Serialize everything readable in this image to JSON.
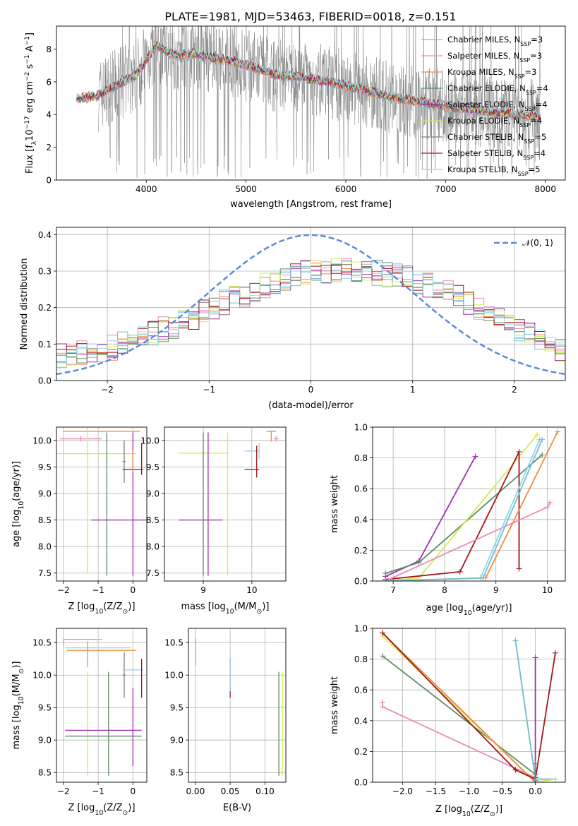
{
  "figure": {
    "title": "PLATE=1981, MJD=53463, FIBERID=0018, z=0.151",
    "colors": {
      "Chabrier MILES": "#77bdcf",
      "Salpeter MILES": "#e98cbb",
      "Kroupa MILES": "#ef8b3f",
      "Chabrier ELODIE": "#5c8c64",
      "Salpeter ELODIE": "#a12fb0",
      "Kroupa ELODIE": "#d4ea58",
      "Chabrier STELIB": "#7f7f7f",
      "Salpeter STELIB": "#a31517",
      "Kroupa STELIB": "#8dd7ea",
      "normal": "#5b8bd9"
    }
  },
  "chart_data": [
    {
      "id": "spectrum",
      "type": "line",
      "xlabel": "wavelength [Angstrom, rest frame]",
      "ylabel_main": "Flux [f",
      "ylabel_sub": "λ",
      "ylabel_rest": "10",
      "ylabel_units": " erg cm",
      "ylabel_units2": " s",
      "ylabel_units3": " A",
      "ylabel_exps": [
        "−17",
        "−2",
        "−1",
        "−1"
      ],
      "xlim": [
        3100,
        8200
      ],
      "ylim": [
        0,
        9.4
      ],
      "xticks": [
        4000,
        5000,
        6000,
        7000,
        8000
      ],
      "yticks": [
        0,
        2,
        4,
        6,
        8
      ],
      "grid": false,
      "legend_position": "top-right",
      "series": [
        {
          "name": "Chabrier MILES, N",
          "ssp": "=3",
          "color_key": "Chabrier MILES"
        },
        {
          "name": "Salpeter MILES, N",
          "ssp": "=3",
          "color_key": "Salpeter MILES"
        },
        {
          "name": "Kroupa MILES, N",
          "ssp": "=3",
          "color_key": "Kroupa MILES"
        },
        {
          "name": "Chabrier ELODIE, N",
          "ssp": "=4",
          "color_key": "Chabrier ELODIE"
        },
        {
          "name": "Salpeter ELODIE, N",
          "ssp": "=4",
          "color_key": "Salpeter ELODIE"
        },
        {
          "name": "Kroupa ELODIE, N",
          "ssp": "=4",
          "color_key": "Kroupa ELODIE"
        },
        {
          "name": "Chabrier STELIB, N",
          "ssp": "=5",
          "color_key": "Chabrier STELIB"
        },
        {
          "name": "Salpeter STELIB, N",
          "ssp": "=4",
          "color_key": "Salpeter STELIB"
        },
        {
          "name": "Kroupa STELIB, N",
          "ssp": "=5",
          "color_key": "Kroupa STELIB"
        }
      ],
      "ssp_sub": "SSP",
      "model_continuum": [
        [
          3300,
          5.0
        ],
        [
          3500,
          5.1
        ],
        [
          3700,
          5.8
        ],
        [
          3900,
          6.4
        ],
        [
          4100,
          8.2
        ],
        [
          4300,
          7.6
        ],
        [
          4500,
          7.7
        ],
        [
          4700,
          7.4
        ],
        [
          4900,
          7.2
        ],
        [
          5100,
          6.8
        ],
        [
          5300,
          6.4
        ],
        [
          5500,
          6.3
        ],
        [
          5700,
          6.1
        ],
        [
          5900,
          5.9
        ],
        [
          6100,
          5.6
        ],
        [
          6300,
          5.3
        ],
        [
          6500,
          5.0
        ],
        [
          6700,
          4.8
        ],
        [
          6900,
          4.6
        ],
        [
          7100,
          4.4
        ],
        [
          7300,
          4.3
        ],
        [
          7500,
          4.1
        ],
        [
          7700,
          4.0
        ],
        [
          7900,
          3.9
        ]
      ]
    },
    {
      "id": "residuals",
      "type": "histogram",
      "xlabel": "(data-model)/error",
      "ylabel": "Normed distribution",
      "xlim": [
        -2.5,
        2.5
      ],
      "ylim": [
        0,
        0.42
      ],
      "xticks": [
        -2,
        -1,
        0,
        1,
        2
      ],
      "yticks": [
        0.0,
        0.1,
        0.2,
        0.3,
        0.4
      ],
      "grid": true,
      "legend_position": "top-right",
      "legend_label": "𝒩(0, 1)",
      "bin_width": 0.1,
      "bin_start": -2.5,
      "base_values": [
        0.07,
        0.075,
        0.075,
        0.08,
        0.08,
        0.09,
        0.1,
        0.11,
        0.125,
        0.13,
        0.14,
        0.15,
        0.16,
        0.175,
        0.19,
        0.2,
        0.215,
        0.225,
        0.235,
        0.245,
        0.26,
        0.27,
        0.28,
        0.29,
        0.295,
        0.3,
        0.3,
        0.305,
        0.3,
        0.3,
        0.3,
        0.295,
        0.29,
        0.285,
        0.28,
        0.27,
        0.26,
        0.25,
        0.24,
        0.23,
        0.215,
        0.2,
        0.185,
        0.17,
        0.155,
        0.14,
        0.125,
        0.11,
        0.1,
        0.085
      ]
    },
    {
      "id": "age-vs-Z",
      "type": "errorbar",
      "xlabel": "Z [log",
      "xlabel_sub": "10",
      "xlabel_rest": "(Z/Z",
      "xlabel_sun": "⊙",
      "xlabel_end": ")]",
      "ylabel": "age  [log",
      "ylabel_sub": "10",
      "ylabel_rest": "(age/yr)]",
      "xlim": [
        -2.2,
        0.4
      ],
      "ylim": [
        7.35,
        10.25
      ],
      "xticks": [
        -2,
        -1,
        0
      ],
      "yticks": [
        7.5,
        8.0,
        8.5,
        9.0,
        9.5,
        10.0
      ],
      "points": [
        {
          "c": "Kroupa MILES",
          "x": -0.9,
          "xe": 1.1,
          "y": 10.17,
          "ye": 0.0
        },
        {
          "c": "Salpeter MILES",
          "x": -1.5,
          "xe": 0.6,
          "y": 10.03,
          "ye": 0.05
        },
        {
          "c": "Kroupa ELODIE",
          "x": -1.3,
          "xe": 1.4,
          "y": 9.75,
          "ye": 2.25
        },
        {
          "c": "Chabrier ELODIE",
          "x": -0.75,
          "xe": 0.0,
          "y": 8.8,
          "ye": 1.35
        },
        {
          "c": "Salpeter ELODIE",
          "x": -0.3,
          "xe": 0.9,
          "y": 8.5,
          "ye": 0.0
        },
        {
          "c": "Salpeter ELODIE",
          "x": 0.0,
          "xe": 0.0,
          "y": 8.8,
          "ye": 1.35
        },
        {
          "c": "Kroupa STELIB",
          "x": -0.3,
          "xe": 0.0,
          "y": 9.78,
          "ye": 0.0
        },
        {
          "c": "Chabrier STELIB",
          "x": -0.25,
          "xe": 0.05,
          "y": 9.6,
          "ye": 0.4
        },
        {
          "c": "Salpeter STELIB",
          "x": 0.0,
          "xe": 0.3,
          "y": 9.45,
          "ye": 0.0
        },
        {
          "c": "Salpeter STELIB",
          "x": 0.25,
          "xe": 0.0,
          "y": 9.65,
          "ye": 0.3
        },
        {
          "c": "Kroupa MILES",
          "x": 0.0,
          "xe": 0.0,
          "y": 9.6,
          "ye": 0.2
        }
      ]
    },
    {
      "id": "age-vs-mass",
      "type": "errorbar",
      "xlabel": "mass [log",
      "xlabel_sub": "10",
      "xlabel_rest": "(M/M",
      "xlabel_sun": "⊙",
      "xlabel_end": ")]",
      "xlim": [
        8.2,
        10.7
      ],
      "ylim": [
        7.35,
        10.25
      ],
      "xticks": [
        9,
        10
      ],
      "yticks": [
        7.5,
        8.0,
        8.5,
        9.0,
        9.5,
        10.0
      ],
      "points": [
        {
          "c": "Kroupa ELODIE",
          "x": 9.0,
          "xe": 0.5,
          "y": 9.76,
          "ye": 0.0
        },
        {
          "c": "Salpeter ELODIE",
          "x": 8.95,
          "xe": 0.45,
          "y": 8.5,
          "ye": 0.0
        },
        {
          "c": "Chabrier ELODIE",
          "x": 9.0,
          "xe": 0.0,
          "y": 8.8,
          "ye": 1.35
        },
        {
          "c": "Salpeter ELODIE",
          "x": 9.1,
          "xe": 0.0,
          "y": 8.8,
          "ye": 1.35
        },
        {
          "c": "Kroupa ELODIE",
          "x": 9.5,
          "xe": 0.0,
          "y": 8.8,
          "ye": 1.35
        },
        {
          "c": "Kroupa STELIB",
          "x": 10.15,
          "xe": 0.0,
          "y": 9.8,
          "ye": 0.15
        },
        {
          "c": "Kroupa STELIB",
          "x": 10.0,
          "xe": 0.15,
          "y": 9.8,
          "ye": 0.0
        },
        {
          "c": "Salpeter STELIB",
          "x": 10.1,
          "xe": 0.0,
          "y": 9.6,
          "ye": 0.3
        },
        {
          "c": "Salpeter STELIB",
          "x": 10.0,
          "xe": 0.15,
          "y": 9.45,
          "ye": 0.0
        },
        {
          "c": "Kroupa MILES",
          "x": 10.4,
          "xe": 0.1,
          "y": 10.17,
          "ye": 0.0
        },
        {
          "c": "Kroupa MILES",
          "x": 10.4,
          "xe": 0.0,
          "y": 10.08,
          "ye": 0.1
        },
        {
          "c": "Salpeter MILES",
          "x": 10.5,
          "xe": 0.05,
          "y": 10.03,
          "ye": 0.05
        }
      ]
    },
    {
      "id": "weight-vs-age",
      "type": "line",
      "xlabel": "age  [log",
      "xlabel_sub": "10",
      "xlabel_rest": "(age/yr)]",
      "ylabel": "mass weight",
      "xlim": [
        6.6,
        10.35
      ],
      "ylim": [
        0,
        1.0
      ],
      "xticks": [
        7,
        8,
        9,
        10
      ],
      "yticks": [
        0.0,
        0.2,
        0.4,
        0.6,
        0.8,
        1.0
      ],
      "grid": true,
      "series": [
        {
          "c": "Salpeter ELODIE",
          "x": [
            6.85,
            7.5,
            8.6
          ],
          "y": [
            0.03,
            0.13,
            0.81
          ]
        },
        {
          "c": "Chabrier ELODIE",
          "x": [
            6.85,
            7.5,
            9.9
          ],
          "y": [
            0.05,
            0.12,
            0.82
          ]
        },
        {
          "c": "Kroupa ELODIE",
          "x": [
            6.85,
            7.5,
            9.8
          ],
          "y": [
            0.0,
            0.02,
            0.95
          ]
        },
        {
          "c": "Salpeter STELIB",
          "x": [
            6.85,
            8.3,
            9.45,
            9.45
          ],
          "y": [
            0.01,
            0.06,
            0.84,
            0.08
          ]
        },
        {
          "c": "Salpeter MILES",
          "x": [
            6.85,
            10.0,
            10.05
          ],
          "y": [
            0.0,
            0.48,
            0.51
          ]
        },
        {
          "c": "Kroupa MILES",
          "x": [
            6.85,
            8.8,
            10.2
          ],
          "y": [
            0.0,
            0.02,
            0.97
          ]
        },
        {
          "c": "Kroupa STELIB",
          "x": [
            6.85,
            8.7,
            9.85
          ],
          "y": [
            0.0,
            0.02,
            0.92
          ]
        },
        {
          "c": "Chabrier MILES",
          "x": [
            6.85,
            8.75,
            9.9
          ],
          "y": [
            0.0,
            0.02,
            0.92
          ]
        }
      ]
    },
    {
      "id": "mass-vs-Z",
      "type": "errorbar",
      "xlabel": "Z [log",
      "xlabel_sub": "10",
      "xlabel_rest": "(Z/Z",
      "xlabel_sun": "⊙",
      "xlabel_end": ")]",
      "ylabel": "mass [log",
      "ylabel_sub": "10",
      "ylabel_rest": "(M/M",
      "ylabel_sun": "⊙",
      "ylabel_end": ")]",
      "xlim": [
        -2.2,
        0.4
      ],
      "ylim": [
        8.35,
        10.72
      ],
      "xticks": [
        -2,
        -1,
        0
      ],
      "yticks": [
        8.5,
        9.0,
        9.5,
        10.0,
        10.5
      ],
      "points": [
        {
          "c": "Salpeter MILES",
          "x": -1.45,
          "xe": 0.55,
          "y": 10.55,
          "ye": 0.0
        },
        {
          "c": "Salpeter MILES",
          "x": -2.0,
          "xe": 0.0,
          "y": 10.5,
          "ye": 0.05
        },
        {
          "c": "Kroupa STELIB",
          "x": -1.0,
          "xe": 0.95,
          "y": 10.42,
          "ye": 0.0
        },
        {
          "c": "Kroupa MILES",
          "x": -0.9,
          "xe": 1.0,
          "y": 10.38,
          "ye": 0.0
        },
        {
          "c": "Kroupa MILES",
          "x": -1.3,
          "xe": 0.0,
          "y": 10.32,
          "ye": 0.2
        },
        {
          "c": "Kroupa ELODIE",
          "x": -0.9,
          "xe": 1.3,
          "y": 9.5,
          "ye": 0.0
        },
        {
          "c": "Kroupa ELODIE",
          "x": -1.3,
          "xe": 0.0,
          "y": 9.25,
          "ye": 0.8
        },
        {
          "c": "Chabrier ELODIE",
          "x": -0.7,
          "xe": 0.0,
          "y": 9.25,
          "ye": 0.8
        },
        {
          "c": "Salpeter ELODIE",
          "x": -0.85,
          "xe": 1.1,
          "y": 9.15,
          "ye": 0.0
        },
        {
          "c": "Chabrier ELODIE",
          "x": -0.85,
          "xe": 1.1,
          "y": 9.06,
          "ye": 0.0
        },
        {
          "c": "Salpeter ELODIE",
          "x": 0.0,
          "xe": 0.0,
          "y": 9.2,
          "ye": 0.6
        },
        {
          "c": "Chabrier STELIB",
          "x": -0.25,
          "xe": 0.05,
          "y": 10.0,
          "ye": 0.35
        },
        {
          "c": "Kroupa STELIB",
          "x": 0.0,
          "xe": 0.3,
          "y": 10.08,
          "ye": 0.0
        },
        {
          "c": "Salpeter STELIB",
          "x": 0.25,
          "xe": 0.0,
          "y": 9.95,
          "ye": 0.3
        }
      ]
    },
    {
      "id": "mass-vs-ebv",
      "type": "errorbar",
      "xlabel": "E(B-V)",
      "xlim": [
        -0.01,
        0.13
      ],
      "ylim": [
        8.35,
        10.72
      ],
      "xticks": [
        0.0,
        0.05,
        0.1
      ],
      "yticks": [
        8.5,
        9.0,
        9.5,
        10.0,
        10.5
      ],
      "points": [
        {
          "c": "Kroupa MILES",
          "x": 0.0,
          "xe": 0.0,
          "y": 10.35,
          "ye": 0.2
        },
        {
          "c": "Salpeter MILES",
          "x": 0.0,
          "xe": 0.0,
          "y": 10.5,
          "ye": 0.08
        },
        {
          "c": "Salpeter STELIB",
          "x": 0.05,
          "xe": 0.0,
          "y": 9.95,
          "ye": 0.3
        },
        {
          "c": "Kroupa STELIB",
          "x": 0.05,
          "xe": 0.0,
          "y": 10.0,
          "ye": 0.25
        },
        {
          "c": "Chabrier ELODIE",
          "x": 0.12,
          "xe": 0.0,
          "y": 9.25,
          "ye": 0.8
        },
        {
          "c": "Kroupa ELODIE",
          "x": 0.125,
          "xe": 0.0,
          "y": 9.25,
          "ye": 0.8
        }
      ]
    },
    {
      "id": "weight-vs-Z",
      "type": "line",
      "xlabel": "Z [log",
      "xlabel_sub": "10",
      "xlabel_rest": "(Z/Z",
      "xlabel_sun": "⊙",
      "xlabel_end": ")]",
      "ylabel": "mass weight",
      "xlim": [
        -2.45,
        0.45
      ],
      "ylim": [
        0,
        1.0
      ],
      "xticks": [
        -2.0,
        -1.5,
        -1.0,
        -0.5,
        0.0
      ],
      "yticks": [
        0.0,
        0.2,
        0.4,
        0.6,
        0.8,
        1.0
      ],
      "grid": true,
      "series": [
        {
          "c": "Salpeter MILES",
          "x": [
            -2.3,
            -2.3,
            0.0
          ],
          "y": [
            0.52,
            0.49,
            0.03
          ]
        },
        {
          "c": "Chabrier ELODIE",
          "x": [
            -2.3,
            0.0
          ],
          "y": [
            0.82,
            0.05
          ]
        },
        {
          "c": "Kroupa ELODIE",
          "x": [
            -2.3,
            0.0
          ],
          "y": [
            0.95,
            0.0
          ]
        },
        {
          "c": "Kroupa MILES",
          "x": [
            -2.3,
            0.0
          ],
          "y": [
            0.97,
            0.0
          ]
        },
        {
          "c": "Salpeter STELIB",
          "x": [
            -2.3,
            -0.3,
            0.0,
            0.3
          ],
          "y": [
            0.97,
            0.08,
            0.02,
            0.84
          ]
        },
        {
          "c": "Kroupa STELIB",
          "x": [
            -0.3,
            0.0,
            0.3
          ],
          "y": [
            0.92,
            0.02,
            0.02
          ]
        },
        {
          "c": "Chabrier MILES",
          "x": [
            -0.3,
            0.0,
            0.3
          ],
          "y": [
            0.92,
            0.02,
            0.02
          ]
        },
        {
          "c": "Salpeter ELODIE",
          "x": [
            0.0,
            0.0
          ],
          "y": [
            0.81,
            0.03
          ]
        },
        {
          "c": "Kroupa ELODIE",
          "x": [
            0.0,
            0.3
          ],
          "y": [
            0.0,
            0.02
          ]
        },
        {
          "c": "Chabrier STELIB",
          "x": [
            0.0,
            0.0
          ],
          "y": [
            0.12,
            0.01
          ]
        }
      ]
    }
  ]
}
